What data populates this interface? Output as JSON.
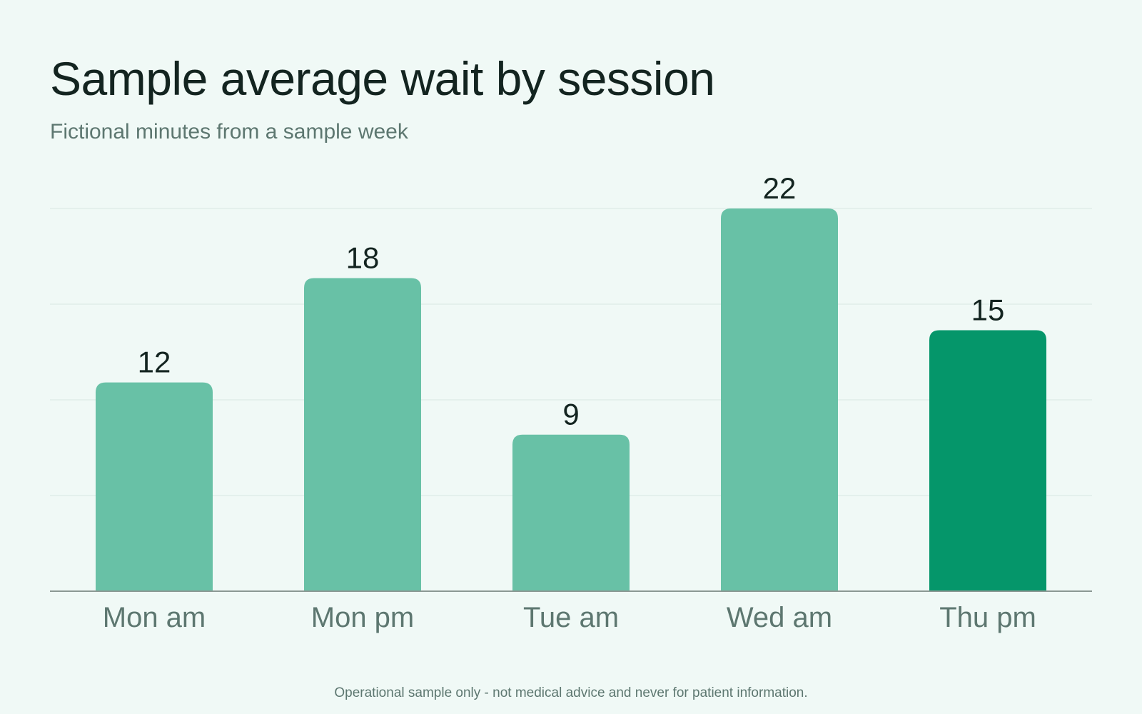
{
  "chart_data": {
    "type": "bar",
    "title": "Sample average wait by session",
    "subtitle": "Fictional minutes from a sample week",
    "categories": [
      "Mon am",
      "Mon pm",
      "Tue am",
      "Wed am",
      "Thu pm"
    ],
    "values": [
      12,
      18,
      9,
      22,
      15
    ],
    "highlight_index": 4,
    "ylim": [
      0,
      22
    ],
    "grid": true,
    "colors": {
      "bar": "#68c1a6",
      "highlight": "#05966a",
      "grid": "#d7e6e1",
      "axis": "#8b9893"
    }
  },
  "footer": "Operational sample only - not medical advice and never for patient information."
}
